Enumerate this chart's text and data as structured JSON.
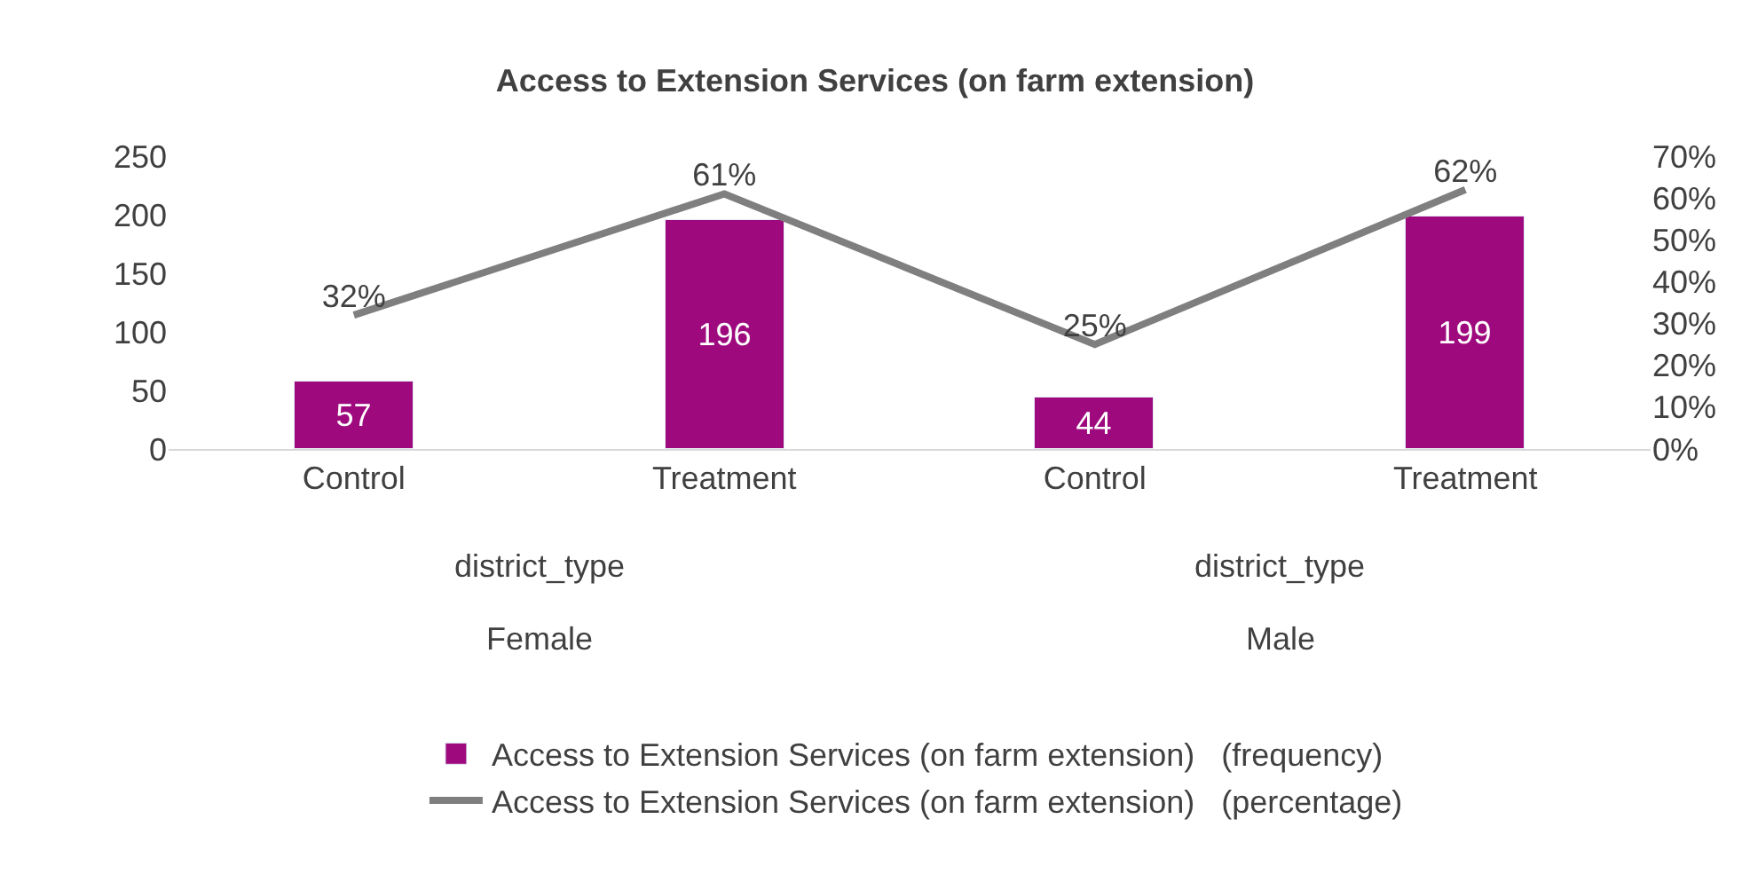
{
  "chart_data": {
    "type": "bar",
    "title": "Access to Extension Services (on farm extension)",
    "categories": [
      "Control",
      "Treatment",
      "Control",
      "Treatment"
    ],
    "annotations": [
      "district_type",
      "district_type",
      "Female",
      "Male"
    ],
    "series": [
      {
        "name": "Access to Extension Services (on farm extension)   (frequency)",
        "color": "#9e0a7e",
        "values": [
          57,
          196,
          44,
          199
        ],
        "value_labels": [
          "57",
          "196",
          "44",
          "199"
        ]
      },
      {
        "name": "Access to Extension Services (on farm extension)   (percentage)",
        "type": "line",
        "axis": "y2",
        "color": "#7f7f7f",
        "marker": "none",
        "values": [
          32,
          61,
          25,
          62
        ],
        "value_labels": [
          "32%",
          "61%",
          "25%",
          "62%"
        ]
      }
    ],
    "ylim": [
      0,
      250
    ],
    "yticks": [
      0,
      50,
      100,
      150,
      200,
      250
    ],
    "y2lim": [
      0,
      70
    ],
    "y2ticks": [
      {
        "value": 0,
        "label": "0%"
      },
      {
        "value": 10,
        "label": "10%"
      },
      {
        "value": 20,
        "label": "20%"
      },
      {
        "value": 30,
        "label": "30%"
      },
      {
        "value": 40,
        "label": "40%"
      },
      {
        "value": 50,
        "label": "50%"
      },
      {
        "value": 60,
        "label": "60%"
      },
      {
        "value": 70,
        "label": "70%"
      }
    ],
    "legend": "bottom"
  }
}
